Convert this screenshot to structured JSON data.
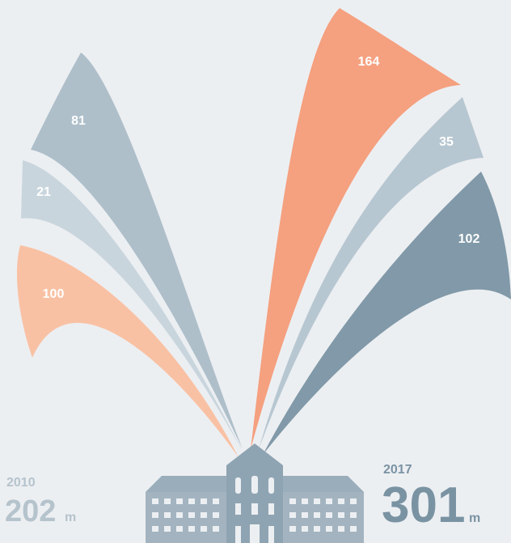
{
  "left": {
    "year": "2010",
    "total": "202",
    "unit": "m",
    "segments": [
      {
        "label": "81"
      },
      {
        "label": "21"
      },
      {
        "label": "100"
      }
    ]
  },
  "right": {
    "year": "2017",
    "total": "301",
    "unit": "m",
    "segments": [
      {
        "label": "164"
      },
      {
        "label": "35"
      },
      {
        "label": "102"
      }
    ]
  }
}
